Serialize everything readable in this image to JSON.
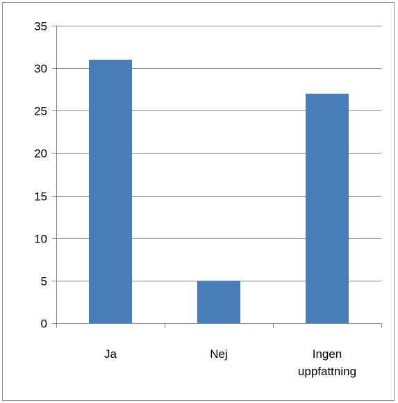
{
  "chart_data": {
    "type": "bar",
    "categories": [
      [
        "Ja"
      ],
      [
        "Nej"
      ],
      [
        "Ingen",
        "uppfattning"
      ]
    ],
    "values": [
      31,
      5,
      27
    ],
    "ylim": [
      0,
      35
    ],
    "yticks": [
      0,
      5,
      10,
      15,
      20,
      25,
      30,
      35
    ],
    "grid": true,
    "legend": "none",
    "colors": {
      "bar": "#4a7ebb",
      "grid": "#868686",
      "axis": "#868686"
    }
  }
}
